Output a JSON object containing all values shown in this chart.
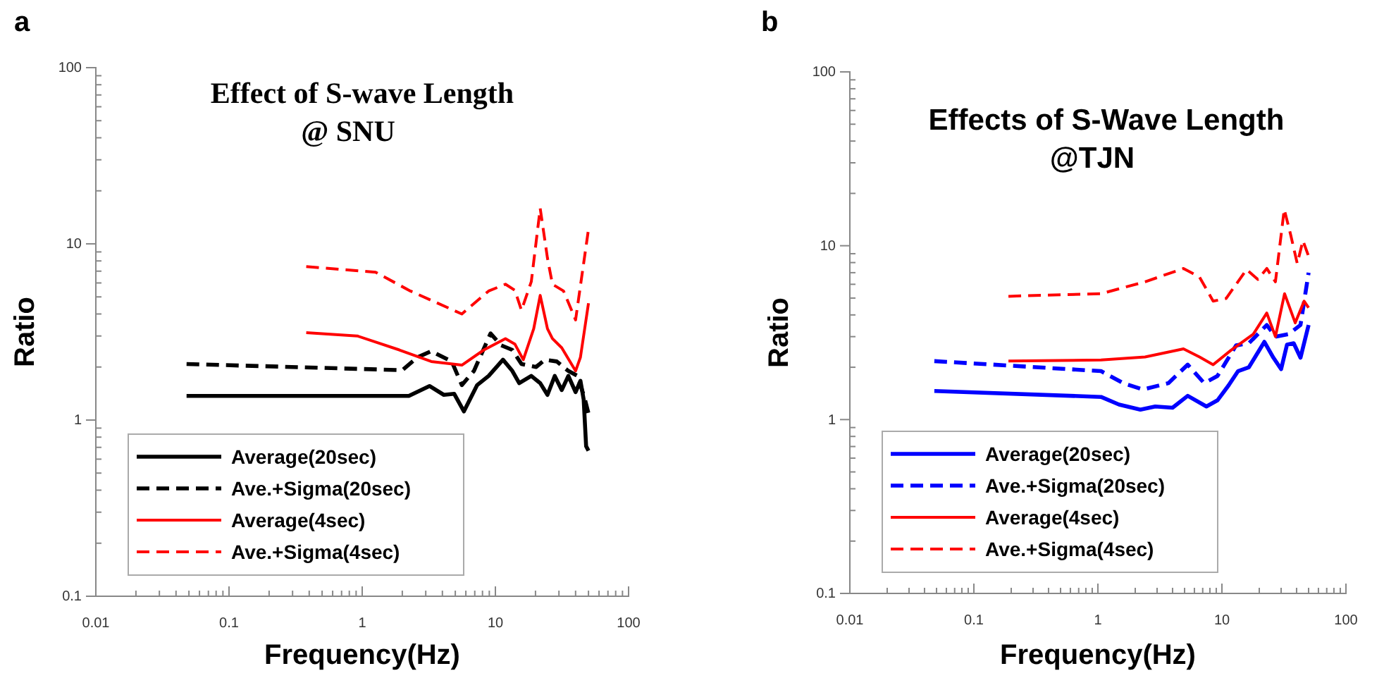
{
  "chart_data": [
    {
      "type": "line",
      "title": "Effect of S-wave Length",
      "subtitle": "@ SNU",
      "xlabel": "Frequency(Hz)",
      "ylabel": "Ratio",
      "annotations": [
        "a"
      ],
      "log": "xy",
      "legend": "bottom left",
      "grid": false,
      "xlim": [
        0.01,
        100
      ],
      "ylim": [
        0.1,
        100
      ],
      "xticks": [
        0.01,
        {
          "value": 0.02,
          "label": null
        },
        {
          "value": 0.03,
          "label": null
        },
        {
          "value": 0.04,
          "label": null
        },
        {
          "value": 0.05,
          "label": null
        },
        {
          "value": 0.06,
          "label": null
        },
        {
          "value": 0.07,
          "label": null
        },
        {
          "value": 0.08,
          "label": null
        },
        {
          "value": 0.09,
          "label": null
        },
        0.1,
        {
          "value": 0.2,
          "label": null
        },
        {
          "value": 0.3,
          "label": null
        },
        {
          "value": 0.4,
          "label": null
        },
        {
          "value": 0.5,
          "label": null
        },
        {
          "value": 0.6,
          "label": null
        },
        {
          "value": 0.7,
          "label": null
        },
        {
          "value": 0.8,
          "label": null
        },
        {
          "value": 0.9,
          "label": null
        },
        1,
        {
          "value": 2,
          "label": null
        },
        {
          "value": 3,
          "label": null
        },
        {
          "value": 4,
          "label": null
        },
        {
          "value": 5,
          "label": null
        },
        {
          "value": 6,
          "label": null
        },
        {
          "value": 7,
          "label": null
        },
        {
          "value": 8,
          "label": null
        },
        {
          "value": 9,
          "label": null
        },
        10,
        {
          "value": 20,
          "label": null
        },
        {
          "value": 30,
          "label": null
        },
        {
          "value": 40,
          "label": null
        },
        {
          "value": 50,
          "label": null
        },
        {
          "value": 60,
          "label": null
        },
        {
          "value": 70,
          "label": null
        },
        {
          "value": 80,
          "label": null
        },
        {
          "value": 90,
          "label": null
        },
        100
      ],
      "yticks": [
        0.1,
        {
          "value": 0.2,
          "label": null
        },
        {
          "value": 0.3,
          "label": null
        },
        {
          "value": 0.4,
          "label": null
        },
        {
          "value": 0.5,
          "label": null
        },
        {
          "value": 0.6,
          "label": null
        },
        {
          "value": 0.7,
          "label": null
        },
        {
          "value": 0.8,
          "label": null
        },
        {
          "value": 0.9,
          "label": null
        },
        1,
        {
          "value": 2,
          "label": null
        },
        {
          "value": 3,
          "label": null
        },
        {
          "value": 4,
          "label": null
        },
        {
          "value": 5,
          "label": null
        },
        {
          "value": 6,
          "label": null
        },
        {
          "value": 7,
          "label": null
        },
        {
          "value": 8,
          "label": null
        },
        {
          "value": 9,
          "label": null
        },
        10,
        {
          "value": 20,
          "label": null
        },
        {
          "value": 30,
          "label": null
        },
        {
          "value": 40,
          "label": null
        },
        {
          "value": 50,
          "label": null
        },
        {
          "value": 60,
          "label": null
        },
        {
          "value": 70,
          "label": null
        },
        {
          "value": 80,
          "label": null
        },
        {
          "value": 90,
          "label": null
        },
        100
      ],
      "series": [
        {
          "name": "Average(20sec)",
          "color": "#000000",
          "line_style": "solid",
          "x": [
            0.048,
            2.24,
            3.2,
            4.1,
            4.9,
            5.8,
            7.3,
            8.9,
            11.4,
            13.4,
            15.1,
            18.6,
            21.7,
            24.6,
            27.9,
            31.5,
            35.3,
            40,
            43.5,
            46,
            48,
            50
          ],
          "values": [
            1.37,
            1.37,
            1.56,
            1.39,
            1.41,
            1.12,
            1.58,
            1.78,
            2.2,
            1.9,
            1.62,
            1.78,
            1.62,
            1.39,
            1.78,
            1.48,
            1.78,
            1.44,
            1.67,
            1.31,
            0.71,
            0.67
          ]
        },
        {
          "name": "Ave.+Sigma(20sec)",
          "color": "#000000",
          "line_style": "dashed",
          "x": [
            0.048,
            2.0,
            2.6,
            3.3,
            4.7,
            5.6,
            6.9,
            9.2,
            11,
            13.4,
            15.7,
            20.2,
            23.5,
            28.9,
            35.3,
            41.5,
            47,
            50
          ],
          "values": [
            2.08,
            1.92,
            2.27,
            2.46,
            2.15,
            1.58,
            1.9,
            3.1,
            2.66,
            2.5,
            2.08,
            2.0,
            2.2,
            2.15,
            1.9,
            1.78,
            1.31,
            1.09
          ]
        },
        {
          "name": "Average(4sec)",
          "color": "#ff0000",
          "line_style": "solid",
          "x": [
            0.38,
            0.92,
            1.9,
            3.3,
            5.6,
            8.2,
            11.9,
            14,
            16.2,
            19.4,
            21.7,
            24.6,
            26.8,
            31.5,
            40,
            43.5,
            50
          ],
          "values": [
            3.13,
            3.0,
            2.5,
            2.15,
            2.05,
            2.5,
            2.9,
            2.7,
            2.2,
            3.3,
            5.1,
            3.3,
            2.9,
            2.57,
            1.9,
            2.27,
            4.6
          ]
        },
        {
          "name": "Ave.+Sigma(4sec)",
          "color": "#ff0000",
          "line_style": "dashed",
          "x": [
            0.38,
            1.26,
            2.3,
            5.6,
            8.9,
            11.9,
            14,
            15.7,
            18.6,
            21.7,
            24.6,
            26.8,
            32.5,
            40,
            50
          ],
          "values": [
            7.43,
            6.9,
            5.4,
            4.0,
            5.4,
            5.9,
            5.45,
            4.2,
            6.1,
            15.9,
            8.3,
            5.9,
            5.4,
            3.7,
            12.1
          ]
        }
      ]
    },
    {
      "type": "line",
      "title": "Effects of S-Wave Length",
      "subtitle": "@TJN",
      "xlabel": "Frequency(Hz)",
      "ylabel": "Ratio",
      "annotations": [
        "b"
      ],
      "log": "xy",
      "legend": "bottom left",
      "grid": false,
      "xlim": [
        0.01,
        100
      ],
      "ylim": [
        0.1,
        100
      ],
      "xticks": [
        0.01,
        {
          "value": 0.02,
          "label": null
        },
        {
          "value": 0.03,
          "label": null
        },
        {
          "value": 0.04,
          "label": null
        },
        {
          "value": 0.05,
          "label": null
        },
        {
          "value": 0.06,
          "label": null
        },
        {
          "value": 0.07,
          "label": null
        },
        {
          "value": 0.08,
          "label": null
        },
        {
          "value": 0.09,
          "label": null
        },
        0.1,
        {
          "value": 0.2,
          "label": null
        },
        {
          "value": 0.3,
          "label": null
        },
        {
          "value": 0.4,
          "label": null
        },
        {
          "value": 0.5,
          "label": null
        },
        {
          "value": 0.6,
          "label": null
        },
        {
          "value": 0.7,
          "label": null
        },
        {
          "value": 0.8,
          "label": null
        },
        {
          "value": 0.9,
          "label": null
        },
        1,
        {
          "value": 2,
          "label": null
        },
        {
          "value": 3,
          "label": null
        },
        {
          "value": 4,
          "label": null
        },
        {
          "value": 5,
          "label": null
        },
        {
          "value": 6,
          "label": null
        },
        {
          "value": 7,
          "label": null
        },
        {
          "value": 8,
          "label": null
        },
        {
          "value": 9,
          "label": null
        },
        10,
        {
          "value": 20,
          "label": null
        },
        {
          "value": 30,
          "label": null
        },
        {
          "value": 40,
          "label": null
        },
        {
          "value": 50,
          "label": null
        },
        {
          "value": 60,
          "label": null
        },
        {
          "value": 70,
          "label": null
        },
        {
          "value": 80,
          "label": null
        },
        {
          "value": 90,
          "label": null
        },
        100
      ],
      "yticks": [
        0.1,
        {
          "value": 0.2,
          "label": null
        },
        {
          "value": 0.3,
          "label": null
        },
        {
          "value": 0.4,
          "label": null
        },
        {
          "value": 0.5,
          "label": null
        },
        {
          "value": 0.6,
          "label": null
        },
        {
          "value": 0.7,
          "label": null
        },
        {
          "value": 0.8,
          "label": null
        },
        {
          "value": 0.9,
          "label": null
        },
        1,
        {
          "value": 2,
          "label": null
        },
        {
          "value": 3,
          "label": null
        },
        {
          "value": 4,
          "label": null
        },
        {
          "value": 5,
          "label": null
        },
        {
          "value": 6,
          "label": null
        },
        {
          "value": 7,
          "label": null
        },
        {
          "value": 8,
          "label": null
        },
        {
          "value": 9,
          "label": null
        },
        10,
        {
          "value": 20,
          "label": null
        },
        {
          "value": 30,
          "label": null
        },
        {
          "value": 40,
          "label": null
        },
        {
          "value": 50,
          "label": null
        },
        {
          "value": 60,
          "label": null
        },
        {
          "value": 70,
          "label": null
        },
        {
          "value": 80,
          "label": null
        },
        {
          "value": 90,
          "label": null
        },
        100
      ],
      "series": [
        {
          "name": "Average(20sec)",
          "color": "#0000ff",
          "line_style": "solid",
          "x": [
            0.048,
            1.06,
            1.48,
            2.2,
            2.9,
            4.0,
            5.3,
            7.5,
            9.2,
            11.3,
            13.5,
            16.5,
            22,
            26,
            30,
            33.5,
            37.9,
            43,
            50
          ],
          "values": [
            1.46,
            1.35,
            1.22,
            1.14,
            1.19,
            1.17,
            1.37,
            1.19,
            1.29,
            1.57,
            1.9,
            2.0,
            2.8,
            2.27,
            1.95,
            2.7,
            2.75,
            2.27,
            3.5
          ]
        },
        {
          "name": "Ave.+Sigma(20sec)",
          "color": "#0000ff",
          "line_style": "dashed",
          "x": [
            0.048,
            1.06,
            1.6,
            2.3,
            3.7,
            5.3,
            7.2,
            9.2,
            13,
            16.5,
            23,
            27,
            34.5,
            43,
            50
          ],
          "values": [
            2.17,
            1.9,
            1.62,
            1.49,
            1.62,
            2.07,
            1.62,
            1.78,
            2.67,
            2.75,
            3.5,
            3.0,
            3.1,
            3.5,
            7.0
          ]
        },
        {
          "name": "Average(4sec)",
          "color": "#ff0000",
          "line_style": "solid",
          "x": [
            0.19,
            1.06,
            2.4,
            4.9,
            6.6,
            8.5,
            11.8,
            17.9,
            23,
            27,
            32,
            39,
            46,
            50
          ],
          "values": [
            2.17,
            2.2,
            2.29,
            2.55,
            2.29,
            2.07,
            2.5,
            3.1,
            4.1,
            3.0,
            5.3,
            3.6,
            4.8,
            4.4
          ]
        },
        {
          "name": "Ave.+Sigma(4sec)",
          "color": "#ff0000",
          "line_style": "dashed",
          "x": [
            0.19,
            1.06,
            2.4,
            4.9,
            6.6,
            8.5,
            10.8,
            15.8,
            19.5,
            23,
            27,
            31.8,
            35.9,
            40.5,
            45,
            50
          ],
          "values": [
            5.12,
            5.3,
            6.2,
            7.4,
            6.6,
            4.8,
            4.97,
            7.3,
            6.4,
            7.4,
            6.2,
            16.2,
            11.5,
            7.9,
            10.7,
            8.7
          ]
        }
      ]
    }
  ]
}
